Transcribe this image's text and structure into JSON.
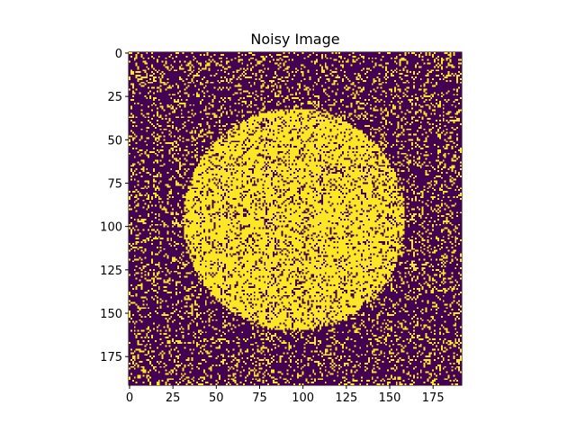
{
  "chart_data": {
    "type": "heatmap",
    "title": "Noisy Image",
    "xlabel": "",
    "ylabel": "",
    "image_shape": [
      192,
      192
    ],
    "xlim": [
      -0.5,
      191.5
    ],
    "ylim": [
      191.5,
      -0.5
    ],
    "x_ticks": [
      0,
      25,
      50,
      75,
      100,
      125,
      150,
      175
    ],
    "y_ticks": [
      0,
      25,
      50,
      75,
      100,
      125,
      150,
      175
    ],
    "x_tick_labels": [
      "0",
      "25",
      "50",
      "75",
      "100",
      "125",
      "150",
      "175"
    ],
    "y_tick_labels": [
      "0",
      "25",
      "50",
      "75",
      "100",
      "125",
      "150",
      "175"
    ],
    "colormap": "viridis",
    "value_colors": {
      "0": "#440154",
      "1": "#fde725"
    },
    "shape": {
      "kind": "circle",
      "center_x": 95,
      "center_y": 96,
      "radius": 64,
      "value": 1
    },
    "noise_fraction": 0.2,
    "grid": false,
    "legend": "none"
  }
}
